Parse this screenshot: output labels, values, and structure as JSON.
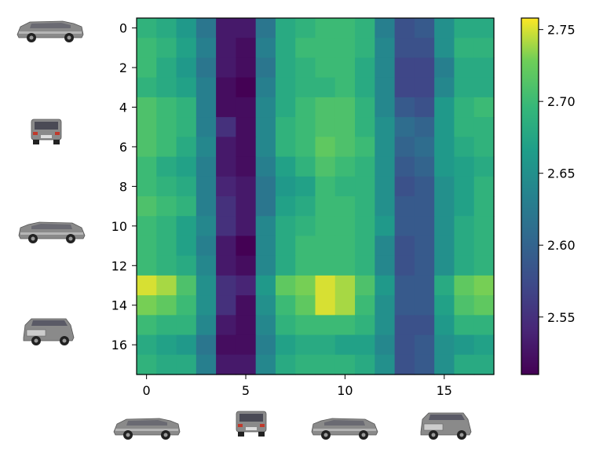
{
  "chart_data": {
    "type": "heatmap",
    "title": "",
    "xlabel": "",
    "ylabel": "",
    "rows": 18,
    "cols": 18,
    "x_ticks": [
      0,
      5,
      10,
      15
    ],
    "x_tick_labels": [
      "0",
      "5",
      "10",
      "15"
    ],
    "y_ticks": [
      0,
      2,
      4,
      6,
      8,
      10,
      12,
      14,
      16
    ],
    "y_tick_labels": [
      "0",
      "2",
      "4",
      "6",
      "8",
      "10",
      "12",
      "14",
      "16"
    ],
    "colorbar": {
      "colormap": "viridis",
      "vmin": 2.51,
      "vmax": 2.758,
      "ticks": [
        2.55,
        2.6,
        2.65,
        2.7,
        2.75
      ],
      "tick_labels": [
        "2.55",
        "2.60",
        "2.65",
        "2.70",
        "2.75"
      ]
    },
    "values": [
      [
        2.69,
        2.68,
        2.66,
        2.62,
        2.53,
        2.53,
        2.62,
        2.68,
        2.69,
        2.7,
        2.7,
        2.69,
        2.63,
        2.58,
        2.59,
        2.65,
        2.68,
        2.68
      ],
      [
        2.7,
        2.69,
        2.67,
        2.63,
        2.53,
        2.52,
        2.63,
        2.68,
        2.7,
        2.7,
        2.7,
        2.69,
        2.64,
        2.58,
        2.58,
        2.65,
        2.69,
        2.69
      ],
      [
        2.7,
        2.68,
        2.66,
        2.62,
        2.53,
        2.52,
        2.62,
        2.68,
        2.69,
        2.7,
        2.7,
        2.68,
        2.64,
        2.57,
        2.57,
        2.63,
        2.68,
        2.68
      ],
      [
        2.69,
        2.68,
        2.67,
        2.63,
        2.52,
        2.51,
        2.63,
        2.68,
        2.69,
        2.69,
        2.7,
        2.68,
        2.64,
        2.57,
        2.57,
        2.64,
        2.68,
        2.68
      ],
      [
        2.71,
        2.7,
        2.69,
        2.63,
        2.52,
        2.52,
        2.64,
        2.68,
        2.7,
        2.71,
        2.71,
        2.69,
        2.64,
        2.59,
        2.58,
        2.66,
        2.69,
        2.7
      ],
      [
        2.71,
        2.7,
        2.69,
        2.63,
        2.55,
        2.52,
        2.64,
        2.69,
        2.7,
        2.71,
        2.71,
        2.69,
        2.65,
        2.61,
        2.6,
        2.66,
        2.69,
        2.69
      ],
      [
        2.71,
        2.7,
        2.68,
        2.64,
        2.53,
        2.52,
        2.64,
        2.69,
        2.7,
        2.72,
        2.71,
        2.7,
        2.65,
        2.6,
        2.61,
        2.66,
        2.68,
        2.69
      ],
      [
        2.7,
        2.68,
        2.67,
        2.63,
        2.53,
        2.52,
        2.63,
        2.67,
        2.69,
        2.71,
        2.7,
        2.69,
        2.65,
        2.59,
        2.6,
        2.66,
        2.67,
        2.68
      ],
      [
        2.7,
        2.69,
        2.68,
        2.63,
        2.54,
        2.53,
        2.62,
        2.66,
        2.67,
        2.7,
        2.69,
        2.69,
        2.65,
        2.58,
        2.59,
        2.65,
        2.67,
        2.69
      ],
      [
        2.71,
        2.7,
        2.69,
        2.63,
        2.55,
        2.53,
        2.62,
        2.67,
        2.68,
        2.7,
        2.7,
        2.69,
        2.65,
        2.59,
        2.59,
        2.65,
        2.67,
        2.69
      ],
      [
        2.7,
        2.69,
        2.67,
        2.64,
        2.55,
        2.53,
        2.64,
        2.68,
        2.69,
        2.7,
        2.7,
        2.69,
        2.66,
        2.59,
        2.59,
        2.65,
        2.68,
        2.69
      ],
      [
        2.7,
        2.69,
        2.67,
        2.63,
        2.53,
        2.51,
        2.64,
        2.68,
        2.7,
        2.7,
        2.7,
        2.69,
        2.64,
        2.58,
        2.59,
        2.65,
        2.68,
        2.69
      ],
      [
        2.7,
        2.69,
        2.68,
        2.64,
        2.53,
        2.52,
        2.64,
        2.68,
        2.7,
        2.7,
        2.7,
        2.69,
        2.64,
        2.58,
        2.59,
        2.65,
        2.68,
        2.69
      ],
      [
        2.75,
        2.74,
        2.71,
        2.65,
        2.55,
        2.54,
        2.66,
        2.72,
        2.73,
        2.75,
        2.74,
        2.71,
        2.66,
        2.59,
        2.59,
        2.68,
        2.72,
        2.73
      ],
      [
        2.73,
        2.72,
        2.7,
        2.65,
        2.55,
        2.52,
        2.65,
        2.7,
        2.72,
        2.75,
        2.74,
        2.7,
        2.65,
        2.59,
        2.59,
        2.67,
        2.71,
        2.72
      ],
      [
        2.7,
        2.69,
        2.69,
        2.64,
        2.53,
        2.52,
        2.64,
        2.69,
        2.7,
        2.7,
        2.7,
        2.69,
        2.65,
        2.58,
        2.58,
        2.66,
        2.69,
        2.69
      ],
      [
        2.68,
        2.67,
        2.66,
        2.62,
        2.52,
        2.52,
        2.63,
        2.67,
        2.68,
        2.68,
        2.67,
        2.67,
        2.64,
        2.58,
        2.59,
        2.65,
        2.66,
        2.67
      ],
      [
        2.69,
        2.68,
        2.68,
        2.63,
        2.53,
        2.53,
        2.64,
        2.68,
        2.69,
        2.69,
        2.69,
        2.68,
        2.65,
        2.58,
        2.59,
        2.65,
        2.68,
        2.68
      ]
    ]
  },
  "thumbnail_icons": [
    "car-side-left-icon",
    "car-rear-icon",
    "car-side-right-icon",
    "car-front-icon"
  ]
}
